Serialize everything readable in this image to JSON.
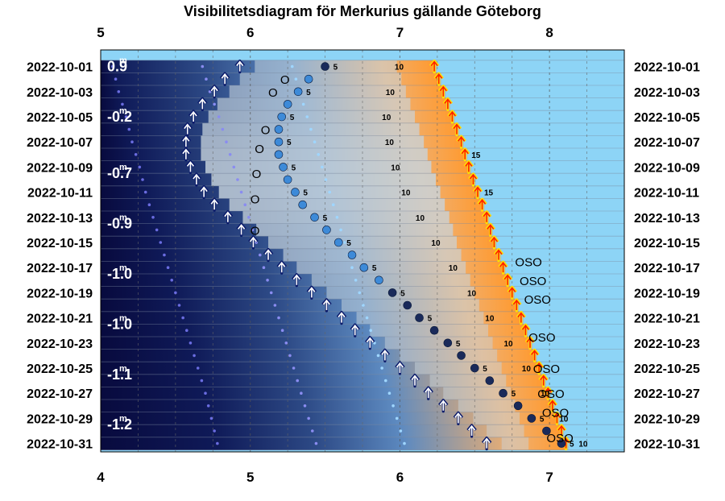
{
  "chart_data": {
    "type": "visibility-diagram",
    "title": "Visibilitetsdiagram för Merkurius gällande Göteborg",
    "top_axis_ticks": [
      "5",
      "6",
      "7",
      "8"
    ],
    "bottom_axis_ticks": [
      "4",
      "5",
      "6",
      "7"
    ],
    "x_range_bottom": [
      4,
      7.5
    ],
    "top_axis_offset_hours": 1,
    "grid": "dotted vertical every 0.25 h",
    "dates": [
      "2022-10-01",
      "2022-10-03",
      "2022-10-05",
      "2022-10-07",
      "2022-10-09",
      "2022-10-11",
      "2022-10-13",
      "2022-10-15",
      "2022-10-17",
      "2022-10-19",
      "2022-10-21",
      "2022-10-23",
      "2022-10-25",
      "2022-10-27",
      "2022-10-29",
      "2022-10-31"
    ],
    "magnitude_labels": [
      {
        "day": 1,
        "text": "0.9"
      },
      {
        "day": 5,
        "text": "-0.2"
      },
      {
        "day": 9.5,
        "text": "-0.7"
      },
      {
        "day": 13.5,
        "text": "-0.9"
      },
      {
        "day": 17.5,
        "text": "-1.0"
      },
      {
        "day": 21.5,
        "text": "-1.0"
      },
      {
        "day": 25.5,
        "text": "-1.1"
      },
      {
        "day": 29.5,
        "text": "-1.2"
      }
    ],
    "magnitude_superscript": "m",
    "altitude_labels": [
      "5",
      "10",
      "15"
    ],
    "direction_labels": [
      "O",
      "OSO"
    ],
    "direction_label_rows": [
      {
        "day": 2,
        "text": "O",
        "x": 5.2
      },
      {
        "day": 3,
        "text": "O",
        "x": 5.12
      },
      {
        "day": 6,
        "text": "O",
        "x": 5.07
      },
      {
        "day": 7.5,
        "text": "O",
        "x": 5.03
      },
      {
        "day": 9.5,
        "text": "O",
        "x": 5.01
      },
      {
        "day": 11.5,
        "text": "O",
        "x": 5.0
      },
      {
        "day": 14,
        "text": "O",
        "x": 5.0
      },
      {
        "day": 16.5,
        "text": "OSO",
        "x": 6.77
      },
      {
        "day": 18,
        "text": "OSO",
        "x": 6.8
      },
      {
        "day": 19.5,
        "text": "OSO",
        "x": 6.83
      },
      {
        "day": 22.5,
        "text": "OSO",
        "x": 6.86
      },
      {
        "day": 25,
        "text": "OSO",
        "x": 6.89
      },
      {
        "day": 27,
        "text": "OSO",
        "x": 6.92
      },
      {
        "day": 28.5,
        "text": "OSO",
        "x": 6.95
      },
      {
        "day": 30.5,
        "text": "OSO",
        "x": 6.98
      }
    ],
    "series": {
      "astronomical_twilight_start": [
        [
          1,
          4.08
        ],
        [
          3,
          4.12
        ],
        [
          5,
          4.17
        ],
        [
          7,
          4.21
        ],
        [
          9,
          4.26
        ],
        [
          11,
          4.3
        ],
        [
          13,
          4.35
        ],
        [
          15,
          4.4
        ],
        [
          17,
          4.45
        ],
        [
          19,
          4.5
        ],
        [
          21,
          4.55
        ],
        [
          23,
          4.6
        ],
        [
          25,
          4.65
        ],
        [
          27,
          4.7
        ],
        [
          29,
          4.74
        ],
        [
          31,
          4.78
        ]
      ],
      "nautical_twilight_start": [
        [
          1,
          4.68
        ],
        [
          3,
          4.73
        ],
        [
          5,
          4.79
        ],
        [
          7,
          4.84
        ],
        [
          9,
          4.89
        ],
        [
          11,
          4.94
        ],
        [
          13,
          4.99
        ],
        [
          15,
          5.04
        ],
        [
          17,
          5.09
        ],
        [
          19,
          5.14
        ],
        [
          21,
          5.19
        ],
        [
          23,
          5.24
        ],
        [
          25,
          5.29
        ],
        [
          27,
          5.34
        ],
        [
          29,
          5.39
        ],
        [
          31,
          5.44
        ]
      ],
      "civil_twilight_start": [
        [
          1,
          5.28
        ],
        [
          3,
          5.33
        ],
        [
          5,
          5.38
        ],
        [
          7,
          5.43
        ],
        [
          9,
          5.48
        ],
        [
          11,
          5.53
        ],
        [
          13,
          5.58
        ],
        [
          15,
          5.63
        ],
        [
          17,
          5.68
        ],
        [
          19,
          5.73
        ],
        [
          21,
          5.78
        ],
        [
          23,
          5.83
        ],
        [
          25,
          5.88
        ],
        [
          27,
          5.93
        ],
        [
          29,
          5.98
        ],
        [
          31,
          6.03
        ]
      ],
      "sunrise": [
        [
          1,
          6.23
        ],
        [
          3,
          6.29
        ],
        [
          5,
          6.35
        ],
        [
          7,
          6.41
        ],
        [
          9,
          6.46
        ],
        [
          11,
          6.52
        ],
        [
          13,
          6.58
        ],
        [
          15,
          6.63
        ],
        [
          17,
          6.69
        ],
        [
          19,
          6.75
        ],
        [
          21,
          6.81
        ],
        [
          23,
          6.87
        ],
        [
          25,
          6.93
        ],
        [
          27,
          6.99
        ],
        [
          29,
          7.05
        ],
        [
          31,
          7.11
        ]
      ],
      "mercury_rise": [
        [
          1,
          4.93
        ],
        [
          2,
          4.83
        ],
        [
          3,
          4.76
        ],
        [
          4,
          4.68
        ],
        [
          5,
          4.62
        ],
        [
          6,
          4.58
        ],
        [
          7,
          4.57
        ],
        [
          8,
          4.57
        ],
        [
          9,
          4.6
        ],
        [
          10,
          4.64
        ],
        [
          11,
          4.69
        ],
        [
          12,
          4.76
        ],
        [
          13,
          4.85
        ],
        [
          14,
          4.94
        ],
        [
          15,
          5.02
        ],
        [
          16,
          5.12
        ],
        [
          17,
          5.21
        ],
        [
          18,
          5.31
        ],
        [
          19,
          5.41
        ],
        [
          20,
          5.51
        ],
        [
          21,
          5.61
        ],
        [
          22,
          5.7
        ],
        [
          23,
          5.8
        ],
        [
          24,
          5.9
        ],
        [
          25,
          6.0
        ],
        [
          26,
          6.1
        ],
        [
          27,
          6.19
        ],
        [
          28,
          6.29
        ],
        [
          29,
          6.39
        ],
        [
          30,
          6.48
        ],
        [
          31,
          6.58
        ]
      ],
      "mercury_positions": [
        [
          1,
          5.5
        ],
        [
          2,
          5.39
        ],
        [
          3,
          5.32
        ],
        [
          4,
          5.25
        ],
        [
          5,
          5.21
        ],
        [
          6,
          5.19
        ],
        [
          7,
          5.19
        ],
        [
          8,
          5.19
        ],
        [
          9,
          5.22
        ],
        [
          10,
          5.25
        ],
        [
          11,
          5.3
        ],
        [
          12,
          5.35
        ],
        [
          13,
          5.43
        ],
        [
          14,
          5.51
        ],
        [
          15,
          5.59
        ],
        [
          16,
          5.68
        ],
        [
          17,
          5.76
        ],
        [
          18,
          5.86
        ],
        [
          19,
          5.95
        ],
        [
          20,
          6.05
        ],
        [
          21,
          6.13
        ],
        [
          22,
          6.23
        ],
        [
          23,
          6.32
        ],
        [
          24,
          6.41
        ],
        [
          25,
          6.5
        ],
        [
          26,
          6.6
        ],
        [
          27,
          6.69
        ],
        [
          28,
          6.79
        ],
        [
          29,
          6.88
        ],
        [
          30,
          6.98
        ],
        [
          31,
          7.08
        ]
      ]
    }
  }
}
